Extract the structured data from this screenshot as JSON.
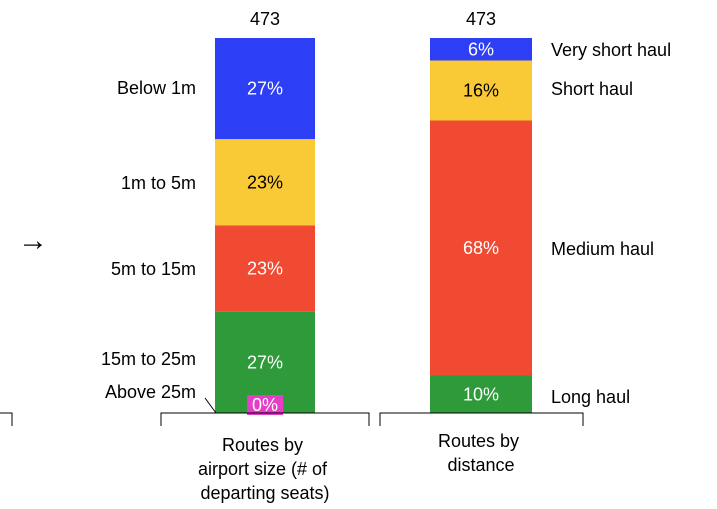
{
  "arrow_glyph": "→",
  "chart_data": {
    "type": "bar",
    "stacked": true,
    "orientation": "vertical",
    "value_unit": "percent",
    "categories": [
      "Routes by airport size (# of departing seats)",
      "Routes by distance"
    ],
    "category_label_lines": [
      [
        "Routes by",
        "airport size (# of",
        "departing seats)"
      ],
      [
        "Routes by",
        "distance"
      ]
    ],
    "totals": [
      "473",
      "473"
    ],
    "stacks": [
      {
        "category": "Routes by airport size (# of departing seats)",
        "segments": [
          {
            "name": "Below 1m",
            "value": 27,
            "label": "27%",
            "color": "#2d3ff5"
          },
          {
            "name": "1m to 5m",
            "value": 23,
            "label": "23%",
            "color": "#f9c936"
          },
          {
            "name": "5m to 15m",
            "value": 23,
            "label": "23%",
            "color": "#f04a32"
          },
          {
            "name": "15m to 25m",
            "value": 27,
            "label": "27%",
            "color": "#2e9a3a"
          },
          {
            "name": "Above 25m",
            "value": 0,
            "label": "0%",
            "color": "#e53fc8"
          }
        ]
      },
      {
        "category": "Routes by distance",
        "segments": [
          {
            "name": "Very short haul",
            "value": 6,
            "label": "6%",
            "color": "#2d3ff5"
          },
          {
            "name": "Short haul",
            "value": 16,
            "label": "16%",
            "color": "#f9c936"
          },
          {
            "name": "Medium haul",
            "value": 68,
            "label": "68%",
            "color": "#f04a32"
          },
          {
            "name": "Long haul",
            "value": 10,
            "label": "10%",
            "color": "#2e9a3a"
          }
        ]
      }
    ],
    "segment_label_color": "#ffffff",
    "segment_label_color_on_yellow": "#000000",
    "grid": false,
    "legend": "inline labels beside each stacked bar"
  }
}
